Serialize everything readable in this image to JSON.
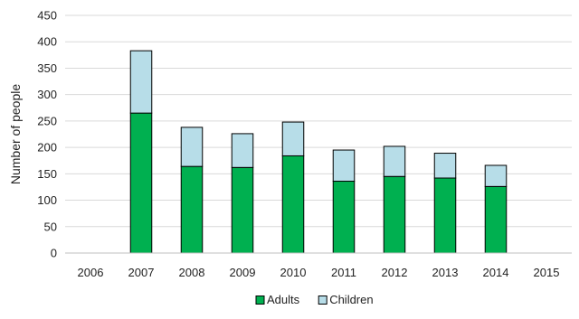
{
  "chart_data": {
    "type": "bar",
    "stacked": true,
    "categories": [
      "2006",
      "2007",
      "2008",
      "2009",
      "2010",
      "2011",
      "2012",
      "2013",
      "2014",
      "2015"
    ],
    "series": [
      {
        "name": "Adults",
        "color": "#00b050",
        "values": [
          0,
          265,
          164,
          162,
          184,
          136,
          145,
          142,
          126,
          0
        ]
      },
      {
        "name": "Children",
        "color": "#b7dde8",
        "values": [
          0,
          118,
          74,
          64,
          64,
          59,
          57,
          47,
          40,
          0
        ]
      }
    ],
    "ylabel": "Number of people",
    "ylim": [
      0,
      450
    ],
    "yticks": [
      0,
      50,
      100,
      150,
      200,
      250,
      300,
      350,
      400,
      450
    ],
    "grid": true,
    "legend_position": "bottom"
  }
}
